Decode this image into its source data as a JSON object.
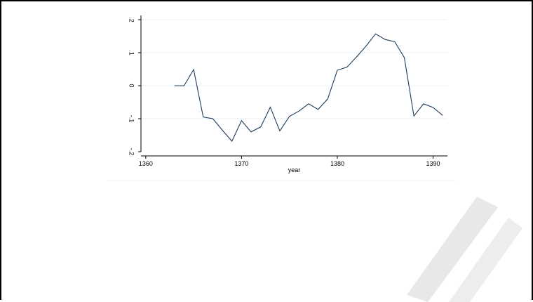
{
  "chart_data": {
    "type": "line",
    "title": "",
    "xlabel": "year",
    "ylabel": "",
    "xlim": [
      1359.5,
      1391.5
    ],
    "ylim": [
      -0.2,
      0.2
    ],
    "x_ticks": [
      1360,
      1370,
      1380,
      1390
    ],
    "y_ticks": [
      -0.2,
      -0.1,
      0,
      0.1,
      0.2
    ],
    "x_tick_labels": [
      "1360",
      "1370",
      "1380",
      "1390"
    ],
    "y_tick_labels": [
      "-.2",
      "-.1",
      "0",
      ".1",
      ".2"
    ],
    "grid": "horizontal",
    "line_color": "#1f3b5a",
    "series": [
      {
        "x": [
          1363,
          1364,
          1365,
          1366,
          1367,
          1368,
          1369,
          1370,
          1371,
          1372,
          1373,
          1374,
          1375,
          1376,
          1377,
          1378,
          1379,
          1380,
          1381,
          1382,
          1383,
          1384,
          1385,
          1386,
          1387,
          1388,
          1389,
          1390,
          1391
        ],
        "y": [
          0.0,
          0.0,
          0.049,
          -0.095,
          -0.1,
          -0.135,
          -0.168,
          -0.106,
          -0.14,
          -0.125,
          -0.065,
          -0.137,
          -0.093,
          -0.077,
          -0.055,
          -0.072,
          -0.04,
          0.047,
          0.056,
          0.087,
          0.12,
          0.157,
          0.14,
          0.133,
          0.085,
          -0.092,
          -0.055,
          -0.066,
          -0.09
        ]
      }
    ]
  }
}
